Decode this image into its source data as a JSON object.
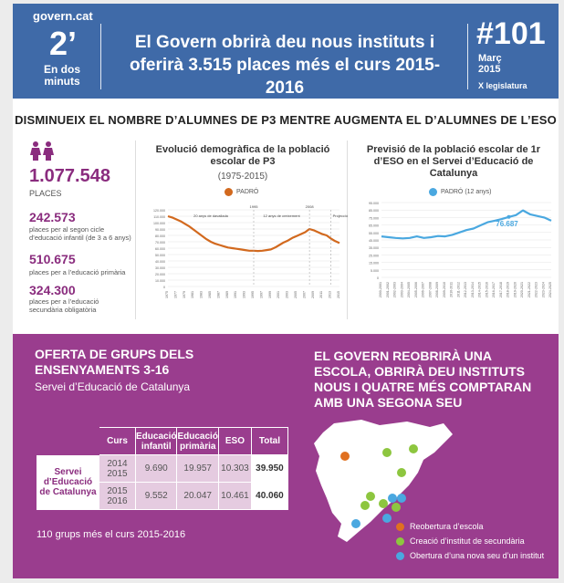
{
  "header": {
    "logo": "govern.cat",
    "minutes_big": "2’",
    "minutes_label": "En dos minuts",
    "title": "El Govern obrirà deu nous instituts i oferirà 3.515 places més el curs 2015-2016",
    "issue": "#101",
    "date": "Març 2015",
    "legislature": "X legislatura"
  },
  "section1": {
    "title": "DISMINUEIX EL NOMBRE D’ALUMNES DE P3 MENTRE AUGMENTA EL D’ALUMNES DE L’ESO",
    "total": "1.077.548",
    "total_label": "PLACES",
    "stats": [
      {
        "value": "242.573",
        "desc": "places per al segon cicle d’educació infantil (de 3 a 6 anys)"
      },
      {
        "value": "510.675",
        "desc": "places per a l’educació primària"
      },
      {
        "value": "324.300",
        "desc": "places per a l’educació secundària obligatòria"
      }
    ],
    "colors": {
      "accent": "#8a2c7e",
      "header": "#3f6aa8",
      "p3_line": "#d2691e",
      "eso_line": "#4aa8e0"
    }
  },
  "chart_data": [
    {
      "type": "line",
      "title": "Evolució demogràfica de la població escolar de P3",
      "subtitle": "(1975-2015)",
      "legend": "PADRÓ",
      "annotations": [
        "20 anys de davallada",
        "12 anys de creixement",
        "Projecció",
        "1995",
        "2008"
      ],
      "ylim": [
        0,
        120000
      ],
      "yticks": [
        "0",
        "10.000",
        "20.000",
        "30.000",
        "40.000",
        "50.000",
        "60.000",
        "70.000",
        "80.000",
        "90.000",
        "100.000",
        "110.000",
        "120.000"
      ],
      "x": [
        1975,
        1976,
        1977,
        1978,
        1979,
        1980,
        1981,
        1982,
        1983,
        1984,
        1985,
        1986,
        1987,
        1988,
        1989,
        1990,
        1991,
        1992,
        1993,
        1994,
        1995,
        1996,
        1997,
        1998,
        1999,
        2000,
        2001,
        2002,
        2003,
        2004,
        2005,
        2006,
        2007,
        2008,
        2009,
        2010,
        2011,
        2012,
        2013,
        2014,
        2015
      ],
      "values": [
        110000,
        108000,
        105000,
        102000,
        98000,
        94000,
        89000,
        84000,
        79000,
        74000,
        70000,
        67000,
        65000,
        63000,
        61000,
        60000,
        59000,
        58000,
        57000,
        56000,
        56000,
        55500,
        56000,
        57000,
        58000,
        61000,
        65000,
        69000,
        72000,
        76000,
        79000,
        82000,
        85000,
        90000,
        88000,
        85000,
        82000,
        80000,
        75000,
        71000,
        68000
      ]
    },
    {
      "type": "line",
      "title": "Previsió de la població escolar de 1r d’ESO en el Servei d’Educació de Catalunya",
      "legend": "PADRÓ (12 anys)",
      "annotation": "76.687",
      "ylim": [
        0,
        95000
      ],
      "yticks": [
        "0",
        "5.000",
        "15.000",
        "25.000",
        "35.000",
        "45.000",
        "55.000",
        "65.000",
        "75.000",
        "85.000",
        "95.000"
      ],
      "x": [
        "2000-2001",
        "2001-2002",
        "2002-2003",
        "2003-2004",
        "2004-2005",
        "2005-2006",
        "2006-2007",
        "2007-2008",
        "2008-2009",
        "2009-2010",
        "2010-2011",
        "2011-2012",
        "2012-2013",
        "2013-2014",
        "2014-2015",
        "2015-2016",
        "2016-2017",
        "2017-2018",
        "2018-2019",
        "2019-2020",
        "2020-2021",
        "2021-2022",
        "2022-2023",
        "2023-2024",
        "2024-2025"
      ],
      "values": [
        52000,
        51000,
        50000,
        49500,
        50000,
        52000,
        50000,
        51000,
        52500,
        52000,
        54000,
        57000,
        60000,
        62000,
        66000,
        70000,
        72000,
        74000,
        76687,
        79000,
        85000,
        80000,
        78000,
        76000,
        72000
      ]
    }
  ],
  "section2": {
    "title": "OFERTA DE GRUPS DELS ENSENYAMENTS 3-16",
    "subtitle": "Servei d’Educació de Catalunya",
    "headers": [
      "Curs",
      "Educació infantil",
      "Educació primària",
      "ESO",
      "Total"
    ],
    "row_label": "Servei d’Educació de Catalunya",
    "rows": [
      {
        "curs": "2014 2015",
        "infantil": "9.690",
        "primaria": "19.957",
        "eso": "10.303",
        "total": "39.950"
      },
      {
        "curs": "2015 2016",
        "infantil": "9.552",
        "primaria": "20.047",
        "eso": "10.461",
        "total": "40.060"
      }
    ],
    "note": "110 grups més el curs 2015-2016",
    "right_title": "EL GOVERN REOBRIRÀ UNA ESCOLA, OBRIRÀ DEU INSTITUTS NOUS I QUATRE MÉS COMPTARAN AMB UNA SEGONA SEU",
    "legend": [
      {
        "label": "Reobertura d’escola",
        "color": "#e07020"
      },
      {
        "label": "Creació d’institut de secundària",
        "color": "#8dc63f"
      },
      {
        "label": "Obertura d’una nova seu d’un institut",
        "color": "#4aa8e0"
      }
    ]
  }
}
